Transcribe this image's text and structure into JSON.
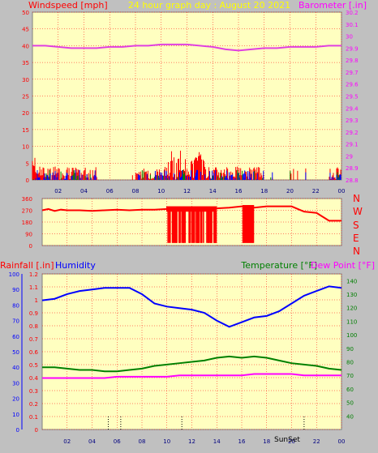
{
  "header": {
    "windspeed_label": "Windspeed [mph]",
    "title": "24 hour graph day : August 20 2021",
    "barometer_label": "Barometer [.in]"
  },
  "panel2": {
    "compass": [
      "N",
      "W",
      "S",
      "E",
      "N"
    ]
  },
  "panel3": {
    "rainfall_label": "Rainfall [.in]",
    "humidity_label": "Humidity",
    "temperature_label": "Temperature [°F]",
    "dewpoint_label": "Dew Point [°F]",
    "sunset_label": "SunSet"
  },
  "colors": {
    "panel_bg": "#ffffc0",
    "grid": "#ff0000",
    "wind": "#ff0000",
    "gust": "#0000ff",
    "wind_green": "#008000",
    "barometer": "#e040e0",
    "direction": "#ff0000",
    "humidity": "#0000ff",
    "temperature": "#008000",
    "dewpoint": "#ff00ff",
    "header_yellow": "#ffff00"
  },
  "chart_data": [
    {
      "type": "line",
      "name": "wind_barometer",
      "x_ticks": [
        "02",
        "04",
        "06",
        "08",
        "10",
        "12",
        "14",
        "16",
        "18",
        "20",
        "22",
        "00"
      ],
      "left_axis": {
        "label": "Windspeed [mph]",
        "ylim": [
          0,
          50
        ],
        "ticks": [
          0,
          5,
          10,
          15,
          20,
          25,
          30,
          35,
          40,
          45,
          50
        ]
      },
      "right_axis": {
        "label": "Barometer [.in]",
        "ylim": [
          28.8,
          30.2
        ],
        "ticks": [
          28.8,
          28.9,
          29,
          29.1,
          29.2,
          29.3,
          29.4,
          29.5,
          29.6,
          29.7,
          29.8,
          29.9,
          30,
          30.1,
          30.2
        ]
      },
      "barometer": {
        "x": [
          0,
          1,
          2,
          3,
          4,
          5,
          6,
          7,
          8,
          9,
          10,
          11,
          12,
          13,
          14,
          15,
          16,
          17,
          18,
          19,
          20,
          21,
          22,
          23,
          24
        ],
        "y": [
          29.92,
          29.92,
          29.91,
          29.9,
          29.9,
          29.9,
          29.91,
          29.91,
          29.92,
          29.92,
          29.93,
          29.93,
          29.93,
          29.92,
          29.91,
          29.89,
          29.88,
          29.89,
          29.9,
          29.9,
          29.91,
          29.91,
          29.91,
          29.92,
          29.92
        ]
      },
      "wind_max_mph": 9,
      "gust_max_mph": 3
    },
    {
      "type": "line",
      "name": "wind_direction",
      "x_ticks": [
        "02",
        "04",
        "06",
        "08",
        "10",
        "12",
        "14",
        "16",
        "18",
        "20",
        "22",
        "00"
      ],
      "ylim": [
        0,
        360
      ],
      "y_ticks": [
        0,
        90,
        180,
        270,
        360
      ],
      "direction": {
        "x": [
          0,
          0.5,
          1,
          1.5,
          2,
          3,
          4,
          5,
          6,
          7,
          8,
          9,
          10,
          11,
          12,
          13,
          14,
          15,
          16,
          17,
          18,
          19,
          20,
          21,
          22,
          23,
          24
        ],
        "y": [
          270,
          280,
          265,
          275,
          270,
          270,
          265,
          270,
          275,
          270,
          275,
          275,
          280,
          290,
          270,
          275,
          285,
          290,
          300,
          290,
          300,
          300,
          300,
          260,
          250,
          190,
          190
        ]
      }
    },
    {
      "type": "line",
      "name": "rain_humidity_temperature",
      "x_ticks": [
        "02",
        "04",
        "06",
        "08",
        "10",
        "12",
        "14",
        "16",
        "18",
        "20",
        "22",
        "00"
      ],
      "rain_axis": {
        "label": "Rainfall [.in]",
        "ylim": [
          0,
          1.2
        ],
        "ticks": [
          0,
          0.1,
          0.2,
          0.3,
          0.4,
          0.5,
          0.6,
          0.7,
          0.8,
          0.9,
          1,
          1.1,
          1.2
        ]
      },
      "humidity_axis": {
        "label": "Humidity",
        "ylim": [
          0,
          100
        ],
        "ticks": [
          0,
          10,
          20,
          30,
          40,
          50,
          60,
          70,
          80,
          90,
          100
        ]
      },
      "temp_axis": {
        "label": "Temperature [°F]",
        "ylim": [
          30,
          145
        ],
        "ticks": [
          40,
          50,
          60,
          70,
          80,
          90,
          100,
          110,
          120,
          130,
          140
        ]
      },
      "humidity": {
        "x": [
          0,
          1,
          2,
          3,
          4,
          5,
          6,
          7,
          8,
          9,
          10,
          11,
          12,
          13,
          14,
          15,
          16,
          17,
          18,
          19,
          20,
          21,
          22,
          23,
          24
        ],
        "y": [
          83,
          84,
          87,
          89,
          90,
          91,
          91,
          91,
          87,
          81,
          79,
          78,
          77,
          75,
          70,
          66,
          69,
          72,
          73,
          76,
          81,
          86,
          89,
          92,
          91
        ]
      },
      "temperature": {
        "x": [
          0,
          1,
          2,
          3,
          4,
          5,
          6,
          7,
          8,
          9,
          10,
          11,
          12,
          13,
          14,
          15,
          16,
          17,
          18,
          19,
          20,
          21,
          22,
          23,
          24
        ],
        "y": [
          76,
          76,
          75,
          74,
          74,
          73,
          73,
          74,
          75,
          77,
          78,
          79,
          80,
          81,
          83,
          84,
          83,
          84,
          83,
          81,
          79,
          78,
          77,
          75,
          74
        ]
      },
      "dewpoint": {
        "x": [
          0,
          1,
          2,
          3,
          4,
          5,
          6,
          7,
          8,
          9,
          10,
          11,
          12,
          13,
          14,
          15,
          16,
          17,
          18,
          19,
          20,
          21,
          22,
          23,
          24
        ],
        "y": [
          68,
          68,
          68,
          68,
          68,
          68,
          69,
          69,
          69,
          69,
          69,
          70,
          70,
          70,
          70,
          70,
          70,
          71,
          71,
          71,
          71,
          70,
          70,
          70,
          70
        ]
      },
      "rain_markers_hours": [
        5.3,
        6.3,
        11.2,
        21.0
      ],
      "sunset_hour": 20.8
    }
  ]
}
